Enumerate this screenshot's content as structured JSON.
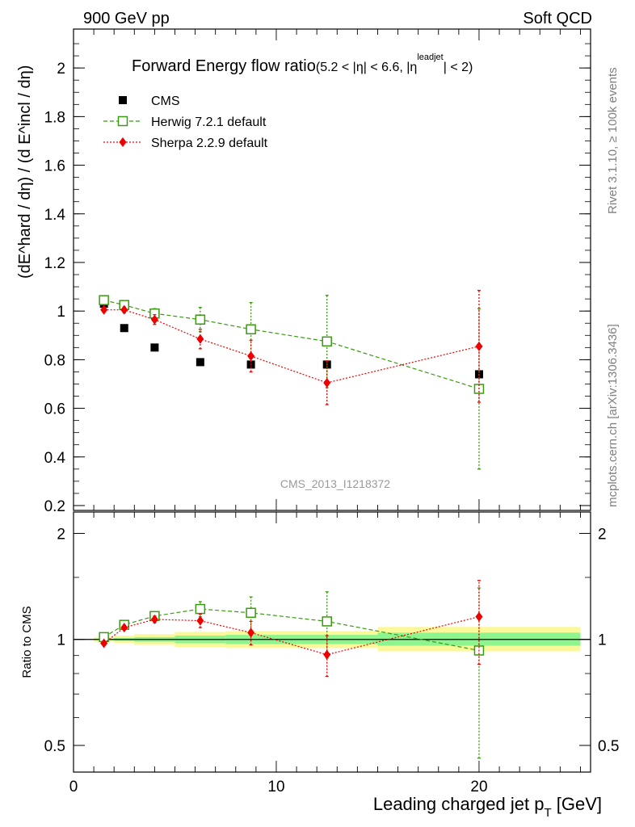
{
  "header": {
    "left": "900 GeV pp",
    "right": "Soft QCD"
  },
  "side": {
    "rivet": "Rivet 3.1.10, ≥ 100k events",
    "mcplots": "mcplots.cern.ch [arXiv:1306.3436]"
  },
  "chart_data": [
    {
      "type": "scatter",
      "title": "Forward Energy flow ratio",
      "title_cut": "(5.2 < |η| < 6.6, |η",
      "title_cut_sup": "leadjet",
      "title_cut_end": "| < 2)",
      "ylabel": "(dE^hard / dη) / (d E^incl / dη)",
      "ylim": [
        0.18,
        2.16
      ],
      "xlim": [
        0,
        25.5
      ],
      "yticks": [
        "0.2",
        "0.4",
        "0.6",
        "0.8",
        "1",
        "1.2",
        "1.4",
        "1.6",
        "1.8",
        "2"
      ],
      "yticks_values": [
        0.2,
        0.4,
        0.6,
        0.8,
        1.0,
        1.2,
        1.4,
        1.6,
        1.8,
        2.0
      ],
      "watermark": "CMS_2013_I1218372",
      "legend_position": "top-left",
      "series": [
        {
          "name": "CMS",
          "color": "#000000",
          "marker": "filled-square",
          "x": [
            1.5,
            2.5,
            4.0,
            6.25,
            8.75,
            12.5,
            20.0
          ],
          "y": [
            1.03,
            0.93,
            0.85,
            0.79,
            0.78,
            0.78,
            0.74
          ]
        },
        {
          "name": "Herwig 7.2.1 default",
          "color": "#3a9a10",
          "marker": "open-square",
          "line": "dashed",
          "x": [
            1.5,
            2.5,
            4.0,
            6.25,
            8.75,
            12.5,
            20.0
          ],
          "y": [
            1.045,
            1.025,
            0.99,
            0.965,
            0.925,
            0.875,
            0.68
          ],
          "err": [
            0.01,
            0.012,
            0.02,
            0.05,
            0.11,
            0.19,
            0.33
          ]
        },
        {
          "name": "Sherpa 2.2.9 default",
          "color": "#ee0000",
          "marker": "filled-diamond",
          "line": "dotted",
          "x": [
            1.5,
            2.5,
            4.0,
            6.25,
            8.75,
            12.5,
            20.0
          ],
          "y": [
            1.005,
            1.005,
            0.965,
            0.885,
            0.815,
            0.705,
            0.855
          ],
          "err": [
            0.01,
            0.012,
            0.02,
            0.04,
            0.065,
            0.09,
            0.23
          ]
        }
      ]
    },
    {
      "type": "scatter",
      "title": "",
      "xlabel": "Leading charged jet p",
      "xlabel_sub": "T",
      "xlabel_unit": " [GeV]",
      "ylabel": "Ratio to CMS",
      "ylim": [
        0.42,
        2.3
      ],
      "log_y": true,
      "xlim": [
        0,
        25.5
      ],
      "xticks": [
        "0",
        "10",
        "20"
      ],
      "xticks_values": [
        0,
        10,
        20
      ],
      "yticks": [
        "0.5",
        "1",
        "2"
      ],
      "yticks_values": [
        0.5,
        1.0,
        2.0
      ],
      "bands": {
        "edges": [
          1,
          2,
          3,
          5,
          7.5,
          10,
          15,
          25
        ],
        "yellow_low": [
          0.985,
          0.975,
          0.965,
          0.95,
          0.945,
          0.945,
          0.925
        ],
        "yellow_high": [
          1.015,
          1.025,
          1.035,
          1.05,
          1.055,
          1.055,
          1.085
        ],
        "green_low": [
          0.995,
          0.99,
          0.985,
          0.975,
          0.97,
          0.97,
          0.96
        ],
        "green_high": [
          1.005,
          1.01,
          1.015,
          1.025,
          1.03,
          1.03,
          1.045
        ],
        "yellow_color": "#fbf89a",
        "green_color": "#8ef48e"
      },
      "series": [
        {
          "name": "Herwig 7.2.1 default",
          "color": "#3a9a10",
          "marker": "open-square",
          "line": "dashed",
          "x": [
            1.5,
            2.5,
            4.0,
            6.25,
            8.75,
            12.5,
            20.0
          ],
          "y": [
            1.015,
            1.1,
            1.165,
            1.22,
            1.19,
            1.125,
            0.93
          ],
          "err": [
            0.01,
            0.015,
            0.025,
            0.06,
            0.13,
            0.24,
            0.47
          ]
        },
        {
          "name": "Sherpa 2.2.9 default",
          "color": "#ee0000",
          "marker": "filled-diamond",
          "line": "dotted",
          "x": [
            1.5,
            2.5,
            4.0,
            6.25,
            8.75,
            12.5,
            20.0
          ],
          "y": [
            0.975,
            1.08,
            1.14,
            1.13,
            1.045,
            0.905,
            1.16
          ],
          "err": [
            0.01,
            0.015,
            0.025,
            0.05,
            0.08,
            0.12,
            0.31
          ]
        }
      ]
    }
  ]
}
